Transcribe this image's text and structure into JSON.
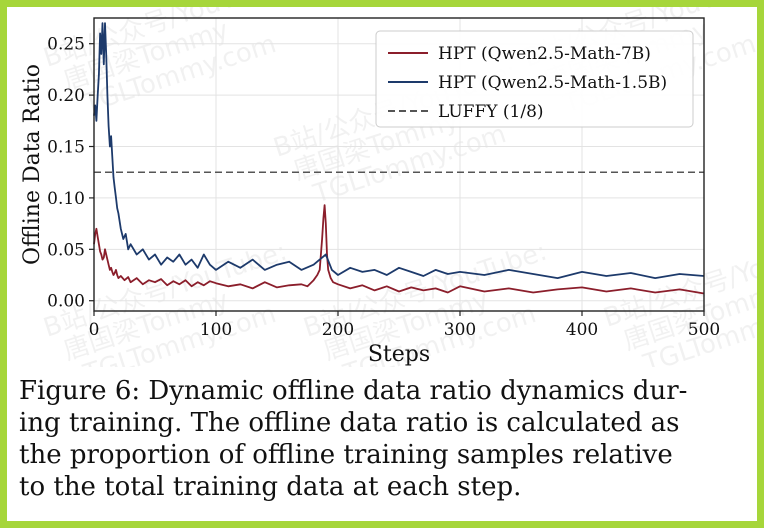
{
  "chart_data": {
    "type": "line",
    "xlabel": "Steps",
    "ylabel": "Offline Data Ratio",
    "xlim": [
      0,
      500
    ],
    "ylim": [
      -0.01,
      0.275
    ],
    "x_ticks": [
      "0",
      "100",
      "200",
      "300",
      "400",
      "500"
    ],
    "y_ticks": [
      "0.00",
      "0.05",
      "0.10",
      "0.15",
      "0.20",
      "0.25"
    ],
    "grid": true,
    "legend_position": "top-right",
    "series": [
      {
        "name": "HPT (Qwen2.5-Math-7B)",
        "color": "#8b1e2b",
        "x": [
          0,
          1,
          2,
          3,
          4,
          5,
          6,
          7,
          8,
          9,
          10,
          11,
          12,
          13,
          14,
          15,
          16,
          17,
          18,
          19,
          20,
          22,
          25,
          28,
          30,
          35,
          40,
          45,
          50,
          55,
          60,
          65,
          70,
          75,
          80,
          85,
          90,
          95,
          100,
          110,
          120,
          130,
          140,
          150,
          160,
          170,
          175,
          180,
          183,
          185,
          187,
          188,
          189,
          190,
          191,
          192,
          194,
          196,
          200,
          210,
          220,
          230,
          240,
          250,
          260,
          270,
          280,
          290,
          300,
          320,
          340,
          360,
          380,
          400,
          420,
          440,
          460,
          480,
          500
        ],
        "y": [
          0.055,
          0.065,
          0.07,
          0.062,
          0.055,
          0.048,
          0.045,
          0.04,
          0.042,
          0.05,
          0.045,
          0.04,
          0.035,
          0.03,
          0.032,
          0.028,
          0.025,
          0.027,
          0.03,
          0.025,
          0.022,
          0.024,
          0.02,
          0.023,
          0.018,
          0.022,
          0.016,
          0.02,
          0.018,
          0.021,
          0.015,
          0.019,
          0.016,
          0.02,
          0.014,
          0.018,
          0.015,
          0.019,
          0.017,
          0.014,
          0.016,
          0.012,
          0.018,
          0.013,
          0.015,
          0.016,
          0.014,
          0.02,
          0.025,
          0.03,
          0.06,
          0.08,
          0.093,
          0.075,
          0.045,
          0.03,
          0.022,
          0.018,
          0.016,
          0.012,
          0.015,
          0.01,
          0.014,
          0.009,
          0.013,
          0.01,
          0.012,
          0.008,
          0.014,
          0.009,
          0.012,
          0.008,
          0.011,
          0.013,
          0.009,
          0.012,
          0.008,
          0.011,
          0.007
        ]
      },
      {
        "name": "HPT (Qwen2.5-Math-1.5B)",
        "color": "#1d3a6b",
        "x": [
          0,
          1,
          2,
          3,
          4,
          5,
          6,
          7,
          8,
          9,
          10,
          11,
          12,
          13,
          14,
          15,
          16,
          17,
          18,
          19,
          20,
          22,
          24,
          26,
          28,
          30,
          35,
          40,
          45,
          50,
          55,
          60,
          65,
          70,
          75,
          80,
          85,
          90,
          95,
          100,
          110,
          120,
          130,
          140,
          150,
          160,
          170,
          180,
          185,
          190,
          195,
          200,
          210,
          220,
          230,
          240,
          250,
          260,
          270,
          280,
          290,
          300,
          320,
          340,
          360,
          380,
          400,
          420,
          440,
          460,
          480,
          500
        ],
        "y": [
          0.18,
          0.19,
          0.175,
          0.2,
          0.22,
          0.26,
          0.24,
          0.27,
          0.23,
          0.27,
          0.24,
          0.2,
          0.17,
          0.15,
          0.16,
          0.14,
          0.12,
          0.11,
          0.1,
          0.09,
          0.085,
          0.07,
          0.06,
          0.065,
          0.05,
          0.055,
          0.045,
          0.05,
          0.04,
          0.045,
          0.035,
          0.042,
          0.038,
          0.045,
          0.035,
          0.04,
          0.032,
          0.045,
          0.035,
          0.03,
          0.038,
          0.032,
          0.04,
          0.03,
          0.035,
          0.038,
          0.03,
          0.035,
          0.04,
          0.045,
          0.03,
          0.025,
          0.032,
          0.028,
          0.03,
          0.025,
          0.032,
          0.028,
          0.024,
          0.03,
          0.026,
          0.028,
          0.025,
          0.03,
          0.026,
          0.022,
          0.028,
          0.024,
          0.027,
          0.022,
          0.026,
          0.024
        ]
      },
      {
        "name": "LUFFY (1/8)",
        "color": "#555555",
        "dashed": true,
        "x": [
          0,
          500
        ],
        "y": [
          0.125,
          0.125
        ]
      }
    ]
  },
  "caption": "Figure 6: Dynamic offline data ratio dynamics during training. The offline data ratio is calculated as the proportion of offline training samples relative to the total training data at each step.",
  "caption_lines": [
    "Figure 6: Dynamic offline data ratio dynamics dur-",
    "ing training. The offline data ratio is calculated as",
    "the proportion of offline training samples relative",
    "to the total training data at each step."
  ],
  "watermark": [
    "B站/公众号/YouTube:",
    "唐国梁Tommy",
    "TGLTommy.com"
  ]
}
